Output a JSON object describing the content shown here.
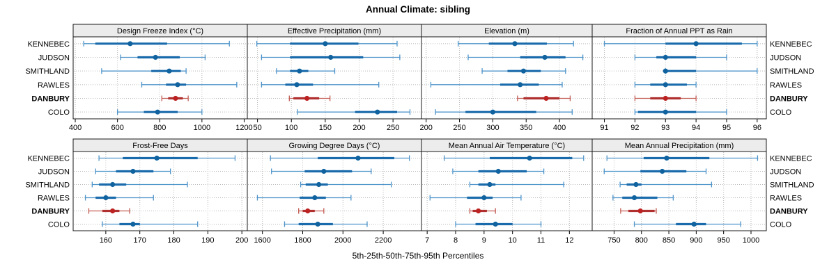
{
  "title": "Annual Climate: sibling",
  "caption": "5th-25th-50th-75th-95th Percentiles",
  "stations": [
    "KENNEBEC",
    "JUDSON",
    "SMITHLAND",
    "RAWLES",
    "DANBURY",
    "COLO"
  ],
  "highlight_station": "DANBURY",
  "colors": {
    "blue_thin": "#4e94ca",
    "blue_thick": "#1a6bab",
    "blue_dot": "#10639f",
    "red_thin": "#c25a52",
    "red_thick": "#b03030",
    "red_dot": "#bd2222",
    "strip_bg": "#ececec",
    "grid": "#b8b8b8",
    "border": "#1a1a1a",
    "tick": "#000000"
  },
  "chart_data": {
    "type": "dotplot-percentiles",
    "description": "Trellis dot plot, 2 rows x 4 panels; each line shows 5th-25th-50th-75th-95th percentiles per station; DANBURY highlighted in red",
    "percentile_labels": [
      "5th",
      "25th",
      "50th",
      "75th",
      "95th"
    ],
    "panels": [
      {
        "title": "Design Freeze Index (°C)",
        "ticks": [
          400,
          600,
          800,
          1000,
          1200
        ],
        "xlim": [
          390,
          1215
        ],
        "values": {
          "KENNEBEC": [
            440,
            495,
            660,
            835,
            1130
          ],
          "JUDSON": [
            615,
            695,
            780,
            895,
            1015
          ],
          "SMITHLAND": [
            525,
            760,
            845,
            900,
            925
          ],
          "RAWLES": [
            715,
            830,
            885,
            925,
            1165
          ],
          "DANBURY": [
            810,
            840,
            875,
            910,
            935
          ],
          "COLO": [
            600,
            725,
            790,
            885,
            1000
          ]
        }
      },
      {
        "title": "Effective Precipitation (mm)",
        "ticks": [
          50,
          100,
          150,
          200,
          250
        ],
        "xlim": [
          35,
          292
        ],
        "values": {
          "KENNEBEC": [
            49,
            98,
            150,
            199,
            256
          ],
          "JUDSON": [
            56,
            98,
            158,
            206,
            260
          ],
          "SMITHLAND": [
            78,
            98,
            112,
            125,
            164
          ],
          "RAWLES": [
            56,
            91,
            108,
            132,
            229
          ],
          "DANBURY": [
            97,
            103,
            123,
            141,
            157
          ],
          "COLO": [
            109,
            194,
            227,
            256,
            275
          ]
        }
      },
      {
        "title": "Elevation (m)",
        "ticks": [
          200,
          250,
          300,
          350,
          400
        ],
        "xlim": [
          193,
          449
        ],
        "values": {
          "KENNEBEC": [
            248,
            294,
            333,
            381,
            421
          ],
          "JUDSON": [
            263,
            341,
            378,
            409,
            435
          ],
          "SMITHLAND": [
            284,
            322,
            346,
            372,
            409
          ],
          "RAWLES": [
            207,
            311,
            341,
            369,
            404
          ],
          "DANBURY": [
            337,
            346,
            380,
            400,
            416
          ],
          "COLO": [
            214,
            259,
            300,
            365,
            419
          ]
        }
      },
      {
        "title": "Fraction of Annual PPT as Rain",
        "ticks": [
          91,
          92,
          93,
          94,
          95,
          96
        ],
        "xlim": [
          90.6,
          96.3
        ],
        "values": {
          "KENNEBEC": [
            91,
            93,
            94,
            95.5,
            96
          ],
          "JUDSON": [
            92,
            92.7,
            93,
            94,
            95
          ],
          "SMITHLAND": [
            93,
            93,
            93,
            94,
            96
          ],
          "RAWLES": [
            92,
            92.5,
            93,
            93.7,
            94
          ],
          "DANBURY": [
            92,
            92.5,
            93,
            93.5,
            94
          ],
          "COLO": [
            92,
            92.1,
            93,
            94,
            95
          ]
        }
      },
      {
        "title": "Frost-Free Days",
        "ticks": [
          160,
          170,
          180,
          190,
          200
        ],
        "xlim": [
          150.4,
          201.6
        ],
        "values": {
          "KENNEBEC": [
            158,
            165,
            175,
            187,
            198
          ],
          "JUDSON": [
            157,
            163,
            168,
            174,
            179
          ],
          "SMITHLAND": [
            156,
            158,
            162,
            166,
            184
          ],
          "RAWLES": [
            154,
            157,
            160,
            163,
            174
          ],
          "DANBURY": [
            155,
            159,
            162,
            164,
            167
          ],
          "COLO": [
            159,
            164,
            168,
            170,
            187
          ]
        }
      },
      {
        "title": "Growing Degree Days (°C)",
        "ticks": [
          1600,
          1800,
          2000,
          2200
        ],
        "xlim": [
          1525,
          2390
        ],
        "values": {
          "KENNEBEC": [
            1640,
            1875,
            2075,
            2255,
            2330
          ],
          "JUDSON": [
            1645,
            1810,
            1905,
            2045,
            2140
          ],
          "SMITHLAND": [
            1790,
            1815,
            1880,
            1925,
            2240
          ],
          "RAWLES": [
            1575,
            1785,
            1860,
            1915,
            2040
          ],
          "DANBURY": [
            1780,
            1800,
            1825,
            1860,
            1905
          ],
          "COLO": [
            1710,
            1780,
            1875,
            1950,
            2120
          ]
        }
      },
      {
        "title": "Mean Annual Air Temperature (°C)",
        "ticks": [
          7,
          8,
          9,
          10,
          11,
          12
        ],
        "xlim": [
          6.8,
          12.8
        ],
        "values": {
          "KENNEBEC": [
            7.6,
            9.2,
            10.6,
            12.1,
            12.5
          ],
          "JUDSON": [
            7.9,
            8.8,
            9.5,
            10.5,
            11.1
          ],
          "SMITHLAND": [
            8.5,
            8.8,
            9.2,
            9.4,
            11.8
          ],
          "RAWLES": [
            7.1,
            8.4,
            9.0,
            9.3,
            10.3
          ],
          "DANBURY": [
            8.5,
            8.6,
            8.8,
            9.1,
            9.4
          ],
          "COLO": [
            8.0,
            8.7,
            9.4,
            10.0,
            11.0
          ]
        }
      },
      {
        "title": "Mean Annual Precipitation (mm)",
        "ticks": [
          750,
          800,
          850,
          900,
          950,
          1000
        ],
        "xlim": [
          710,
          1028
        ],
        "values": {
          "KENNEBEC": [
            737,
            804,
            846,
            924,
            1012
          ],
          "JUDSON": [
            732,
            798,
            838,
            882,
            918
          ],
          "SMITHLAND": [
            761,
            773,
            790,
            800,
            928
          ],
          "RAWLES": [
            748,
            765,
            787,
            829,
            858
          ],
          "DANBURY": [
            762,
            776,
            798,
            824,
            827
          ],
          "COLO": [
            787,
            863,
            896,
            918,
            981
          ]
        }
      }
    ]
  }
}
